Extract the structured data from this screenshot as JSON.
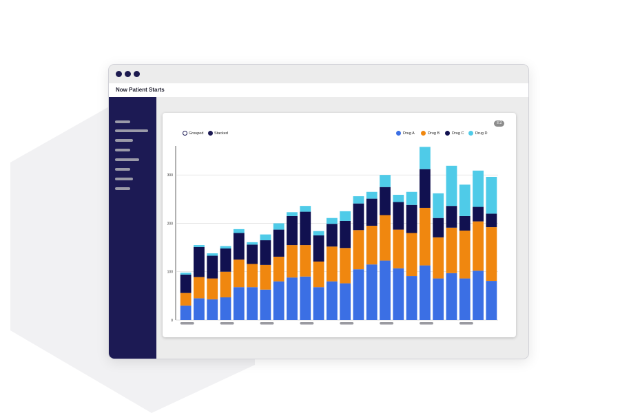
{
  "window": {
    "title": "Now Patient Starts"
  },
  "sidebar": {
    "items": [
      {
        "label": ""
      },
      {
        "label": ""
      },
      {
        "label": ""
      },
      {
        "label": ""
      },
      {
        "label": ""
      },
      {
        "label": ""
      },
      {
        "label": ""
      },
      {
        "label": ""
      }
    ]
  },
  "card": {
    "filter_count": "2",
    "toggle": {
      "grouped": "Grouped",
      "stacked": "Stacked",
      "selected": "Stacked"
    }
  },
  "colors": {
    "drug_a": "#3b6fe4",
    "drug_b": "#f0870f",
    "drug_c": "#111150",
    "drug_d": "#4fcbe8",
    "sidebar": "#1c1a54"
  },
  "chart_data": {
    "type": "bar",
    "stacked": true,
    "title": "",
    "xlabel": "",
    "ylabel": "",
    "ylim": [
      0,
      360
    ],
    "yticks": [
      0,
      100,
      200,
      300
    ],
    "grid": true,
    "legend": "top-right",
    "categories": [
      "",
      "",
      "",
      "",
      "",
      "",
      "",
      "",
      "",
      "",
      "",
      "",
      "",
      "",
      "",
      "",
      "",
      "",
      "",
      "",
      "",
      "",
      "",
      ""
    ],
    "series": [
      {
        "name": "Drug A",
        "color": "#3b6fe4",
        "values": [
          30,
          45,
          43,
          47,
          68,
          68,
          63,
          80,
          88,
          90,
          68,
          80,
          76,
          105,
          115,
          123,
          107,
          91,
          113,
          86,
          97,
          86,
          102,
          81
        ]
      },
      {
        "name": "Drug B",
        "color": "#f0870f",
        "values": [
          26,
          44,
          43,
          53,
          57,
          48,
          51,
          51,
          67,
          65,
          53,
          72,
          73,
          81,
          80,
          94,
          80,
          89,
          119,
          85,
          94,
          99,
          102,
          111
        ]
      },
      {
        "name": "Drug C",
        "color": "#111150",
        "values": [
          38,
          62,
          47,
          48,
          55,
          40,
          51,
          56,
          60,
          69,
          54,
          47,
          56,
          55,
          56,
          58,
          57,
          58,
          80,
          40,
          45,
          30,
          30,
          28
        ]
      },
      {
        "name": "Drug D",
        "color": "#4fcbe8",
        "values": [
          4,
          4,
          5,
          5,
          8,
          5,
          12,
          13,
          8,
          12,
          9,
          12,
          20,
          15,
          14,
          25,
          15,
          27,
          46,
          51,
          83,
          65,
          75,
          76
        ]
      }
    ]
  }
}
